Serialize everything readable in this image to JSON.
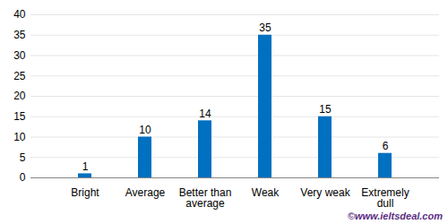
{
  "chart_data": {
    "type": "bar",
    "categories": [
      "Bright",
      "Average",
      "Better than average",
      "Weak",
      "Very weak",
      "Extremely dull"
    ],
    "values": [
      1,
      10,
      14,
      35,
      15,
      6
    ],
    "color": "#0070c0",
    "ylim": [
      0,
      40
    ],
    "yticks": [
      0,
      5,
      10,
      15,
      20,
      25,
      30,
      35,
      40
    ],
    "grid": true,
    "data_labels": true,
    "annotations": [
      "©www.ieltsdeal.com"
    ]
  }
}
